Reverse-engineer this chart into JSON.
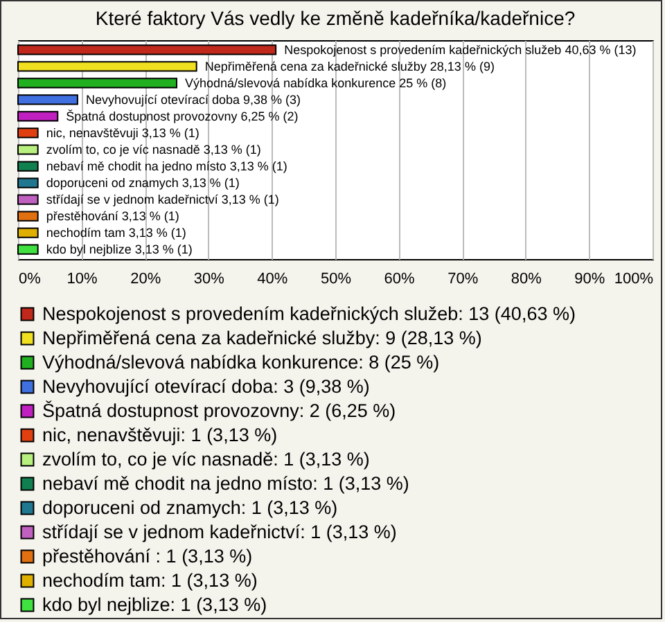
{
  "chart_data": {
    "type": "bar",
    "orientation": "horizontal",
    "title": "Které faktory Vás vedly ke změně kadeřníka/kadeřnice?",
    "categories": [
      "Nespokojenost s provedením kadeřnických služeb",
      "Nepřiměřená cena za kadeřnické služby",
      "Výhodná/slevová nabídka konkurence",
      "Nevyhovující otevírací doba",
      "Špatná dostupnost provozovny",
      "nic, nenavštěvuji",
      "zvolím to, co je víc nasnadě",
      "nebaví mě chodit na jedno místo",
      "doporuceni od znamych",
      "střídají se v jednom kadeřnictví",
      "přestěhování",
      "nechodím tam",
      "kdo byl nejblize"
    ],
    "values": [
      40.63,
      28.13,
      25,
      9.38,
      6.25,
      3.13,
      3.13,
      3.13,
      3.13,
      3.13,
      3.13,
      3.13,
      3.13
    ],
    "value_labels": [
      "40,63 % (13)",
      "28,13 % (9)",
      "25 % (8)",
      "9,38 % (3)",
      "6,25 % (2)",
      "3,13 % (1)",
      "3,13 % (1)",
      "3,13 % (1)",
      "3,13 % (1)",
      "3,13 % (1)",
      "3,13 % (1)",
      "3,13 % (1)",
      "3,13 % (1)"
    ],
    "colors": [
      "#c0281c",
      "#f0e020",
      "#20b020",
      "#4070e0",
      "#c020c0",
      "#e04010",
      "#b8f080",
      "#108050",
      "#207890",
      "#c060c0",
      "#e07010",
      "#e0b000",
      "#40e040"
    ],
    "xlim": [
      0,
      100
    ],
    "xticks": [
      {
        "value": 0,
        "label": "0%"
      },
      {
        "value": 10,
        "label": "10%"
      },
      {
        "value": 20,
        "label": "20%"
      },
      {
        "value": 30,
        "label": "30%"
      },
      {
        "value": 40,
        "label": "40%"
      },
      {
        "value": 50,
        "label": "50%"
      },
      {
        "value": 60,
        "label": "60%"
      },
      {
        "value": 70,
        "label": "70%"
      },
      {
        "value": 80,
        "label": "80%"
      },
      {
        "value": 90,
        "label": "90%"
      },
      {
        "value": 100,
        "label": "100%"
      }
    ],
    "grid": "x",
    "tick_labels": "x",
    "annotations": [
      "Nespokojenost s provedením kadeřnických služeb: 13 (40,63 %)",
      "Nepřiměřená cena za kadeřnické služby: 9 (28,13 %)",
      "Výhodná/slevová nabídka konkurence: 8 (25 %)",
      "Nevyhovující otevírací doba: 3 (9,38 %)",
      "Špatná dostupnost provozovny: 2 (6,25 %)",
      "nic, nenavštěvuji: 1 (3,13 %)",
      "zvolím to, co je víc nasnadě: 1 (3,13 %)",
      "nebaví mě chodit na jedno místo: 1 (3,13 %)",
      "doporuceni od znamych: 1 (3,13 %)",
      "střídají se v jednom kadeřnictví: 1 (3,13 %)",
      "přestěhování : 1 (3,13 %)",
      "nechodím tam: 1 (3,13 %)",
      "kdo byl nejblize: 1 (3,13 %)"
    ]
  }
}
